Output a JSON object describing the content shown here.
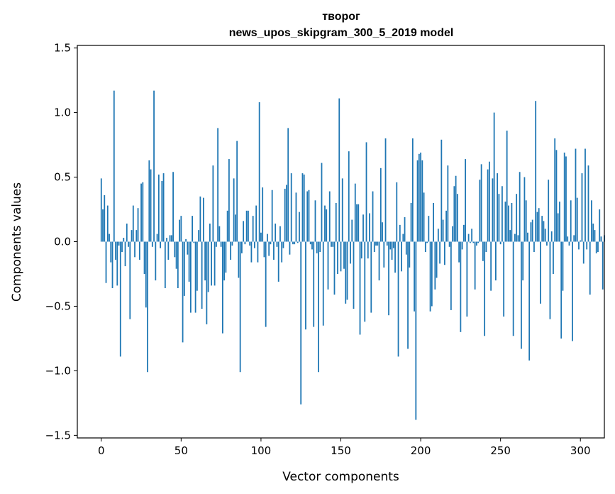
{
  "chart_data": {
    "type": "bar",
    "title": "творог",
    "subtitle": "news_upos_skipgram_300_5_2019 model",
    "xlabel": "Vector components",
    "ylabel": "Components values",
    "xlim": [
      -15,
      315
    ],
    "ylim": [
      -1.52,
      1.52
    ],
    "xticks": [
      0,
      50,
      100,
      150,
      200,
      250,
      300
    ],
    "yticks": [
      -1.5,
      -1.0,
      -0.5,
      0.0,
      0.5,
      1.0,
      1.5
    ],
    "xtick_labels": [
      "0",
      "50",
      "100",
      "150",
      "200",
      "250",
      "300"
    ],
    "ytick_labels": [
      "−1.5",
      "−1.0",
      "−0.5",
      "0.0",
      "0.5",
      "1.0",
      "1.5"
    ],
    "grid": false,
    "legend": "none",
    "bar_color": "#1f77b4",
    "values": [
      0.49,
      0.25,
      0.36,
      -0.32,
      0.28,
      0.06,
      -0.16,
      -0.36,
      1.17,
      -0.14,
      -0.34,
      -0.03,
      -0.89,
      -0.08,
      0.03,
      -0.19,
      0.14,
      -0.04,
      -0.6,
      0.09,
      0.28,
      -0.12,
      0.09,
      0.26,
      -0.14,
      0.45,
      0.46,
      -0.25,
      -0.51,
      -1.01,
      0.63,
      0.56,
      -0.04,
      1.17,
      -0.3,
      0.06,
      0.52,
      -0.05,
      0.47,
      0.53,
      -0.36,
      0.03,
      -0.14,
      0.05,
      0.05,
      0.54,
      -0.12,
      -0.21,
      -0.36,
      0.17,
      0.2,
      -0.78,
      -0.42,
      0.02,
      -0.1,
      -0.31,
      -0.55,
      0.2,
      -0.01,
      -0.55,
      -0.38,
      0.09,
      0.35,
      -0.52,
      0.34,
      -0.3,
      -0.64,
      -0.39,
      0.14,
      -0.34,
      0.59,
      -0.34,
      -0.04,
      0.88,
      0.12,
      -0.04,
      -0.71,
      -0.3,
      -0.24,
      0.24,
      0.64,
      -0.14,
      -0.03,
      0.49,
      0.21,
      0.78,
      -0.28,
      -1.01,
      -0.09,
      0.16,
      -0.02,
      0.24,
      0.24,
      -0.03,
      -0.16,
      0.2,
      -0.05,
      0.28,
      -0.16,
      1.08,
      0.07,
      0.42,
      -0.12,
      -0.66,
      0.06,
      -0.11,
      -0.02,
      0.4,
      -0.14,
      0.14,
      -0.04,
      -0.31,
      0.12,
      -0.16,
      -0.05,
      0.41,
      0.44,
      0.88,
      -0.1,
      0.53,
      -0.02,
      -0.02,
      0.38,
      -0.01,
      0.23,
      -1.26,
      0.53,
      0.52,
      -0.68,
      0.39,
      0.4,
      -0.02,
      -0.06,
      -0.66,
      0.32,
      -0.09,
      -1.01,
      -0.08,
      0.61,
      -0.65,
      0.28,
      0.25,
      -0.37,
      0.39,
      -0.04,
      -0.04,
      -0.41,
      0.3,
      -0.25,
      1.11,
      -0.23,
      0.49,
      -0.21,
      -0.48,
      -0.45,
      0.7,
      -0.17,
      0.17,
      -0.52,
      0.45,
      0.29,
      0.29,
      -0.72,
      -0.13,
      0.21,
      -0.62,
      0.77,
      -0.13,
      0.22,
      -0.55,
      0.39,
      -0.08,
      -0.03,
      -0.03,
      -0.3,
      0.57,
      0.15,
      -0.2,
      0.8,
      -0.03,
      -0.57,
      -0.06,
      -0.14,
      -0.05,
      -0.24,
      0.46,
      -0.89,
      0.13,
      -0.23,
      0.06,
      0.19,
      -0.1,
      -0.83,
      -0.2,
      0.3,
      0.8,
      -0.54,
      -1.38,
      0.63,
      0.68,
      0.69,
      0.63,
      0.38,
      -0.08,
      -0.01,
      0.2,
      -0.54,
      -0.5,
      0.3,
      -0.37,
      -0.28,
      0.1,
      -0.17,
      0.79,
      0.17,
      -0.18,
      0.24,
      0.59,
      -0.04,
      -0.53,
      0.12,
      0.43,
      0.51,
      0.37,
      -0.16,
      -0.7,
      -0.06,
      0.13,
      0.64,
      -0.58,
      0.06,
      -0.01,
      0.1,
      -0.01,
      -0.37,
      -0.03,
      -0.01,
      0.48,
      0.6,
      -0.15,
      -0.73,
      -0.08,
      0.56,
      0.62,
      -0.38,
      0.49,
      1.0,
      -0.3,
      0.53,
      0.37,
      -0.02,
      0.43,
      -0.58,
      0.31,
      0.86,
      0.28,
      0.09,
      0.3,
      -0.73,
      0.06,
      0.37,
      0.05,
      0.54,
      -0.83,
      -0.3,
      0.5,
      0.32,
      0.07,
      -0.92,
      0.15,
      0.17,
      -0.08,
      1.09,
      0.23,
      0.26,
      -0.48,
      0.2,
      0.16,
      0.1,
      -0.03,
      0.48,
      -0.6,
      0.08,
      -0.25,
      0.8,
      0.71,
      0.22,
      0.31,
      -0.75,
      -0.38,
      0.69,
      0.66,
      0.04,
      -0.03,
      0.32,
      -0.77,
      0.05,
      0.72,
      0.34,
      -0.06,
      0.01,
      0.53,
      -0.17,
      0.72,
      -0.06,
      0.59,
      -0.41,
      0.32,
      0.14,
      0.09,
      -0.09,
      -0.08,
      0.25,
      0.04,
      -0.37,
      0.05
    ]
  }
}
